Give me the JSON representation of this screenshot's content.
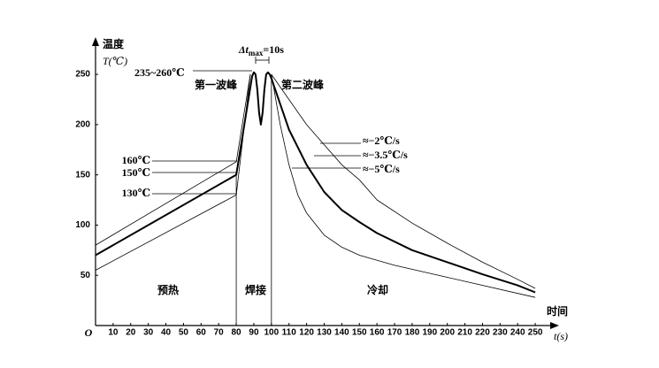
{
  "chart_data": {
    "type": "line",
    "y_label": [
      "温度",
      "T(℃)"
    ],
    "x_label": [
      "时间",
      "t(s)"
    ],
    "origin": "O",
    "xlim": [
      0,
      260
    ],
    "ylim": [
      0,
      280
    ],
    "xticks": [
      10,
      20,
      30,
      40,
      50,
      60,
      70,
      80,
      90,
      100,
      110,
      120,
      130,
      140,
      150,
      160,
      170,
      180,
      190,
      200,
      210,
      220,
      230,
      240,
      250
    ],
    "yticks": [
      50,
      100,
      150,
      200,
      250
    ],
    "series": [
      {
        "color": "#000000",
        "width": 0.8,
        "x": [
          0,
          80,
          88
        ],
        "values": [
          80,
          163,
          250
        ]
      },
      {
        "color": "#000000",
        "width": 0.8,
        "x": [
          0,
          80,
          88
        ],
        "values": [
          55,
          130,
          250
        ]
      },
      {
        "color": "#000000",
        "width": 2,
        "x": [
          0,
          80,
          89,
          90,
          91,
          92,
          93,
          94,
          95,
          96,
          97,
          98,
          99,
          100,
          110,
          120,
          130,
          140,
          150,
          160,
          180,
          200,
          220,
          240,
          250
        ],
        "values": [
          70,
          150,
          248,
          252,
          250,
          235,
          212,
          200,
          212,
          235,
          250,
          252,
          250,
          246,
          195,
          160,
          133,
          115,
          103,
          92,
          75,
          63,
          51,
          40,
          33
        ]
      },
      {
        "color": "#000000",
        "width": 0.8,
        "x": [
          100,
          110,
          120,
          130,
          140,
          150,
          160,
          180,
          200,
          220,
          240,
          250
        ],
        "values": [
          250,
          225,
          200,
          180,
          160,
          145,
          125,
          102,
          82,
          63,
          46,
          37
        ]
      },
      {
        "color": "#000000",
        "width": 0.8,
        "x": [
          100,
          105,
          110,
          115,
          120,
          130,
          140,
          150,
          170,
          200,
          250
        ],
        "values": [
          250,
          200,
          160,
          130,
          112,
          90,
          78,
          70,
          60,
          48,
          28
        ]
      }
    ],
    "vlines": [
      {
        "x": 80,
        "y": 150
      },
      {
        "x": 100,
        "y": 250
      }
    ],
    "delta_t": [
      "Δt",
      "max",
      "=10s"
    ],
    "annotations": [
      "235~260℃",
      "第一波峰",
      "第二波峰",
      "160℃",
      "150℃",
      "130℃",
      "≈−2℃/s",
      "≈−3.5℃/s",
      "≈−5℃/s",
      "预热",
      "焊接",
      "冷却"
    ]
  }
}
